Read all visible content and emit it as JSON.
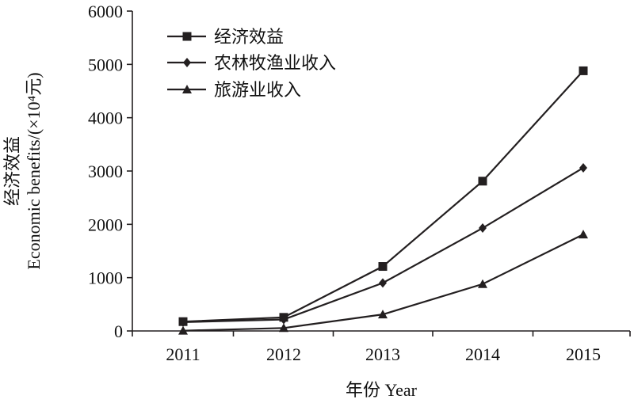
{
  "chart_data": {
    "type": "line",
    "x": [
      "2011",
      "2012",
      "2013",
      "2014",
      "2015"
    ],
    "xlabel": "年份 Year",
    "ylabel_line1": "经济效益",
    "ylabel_line2": "Economic benefits/(×10⁴元)",
    "ylim": [
      0,
      6000
    ],
    "yticks": [
      0,
      1000,
      2000,
      3000,
      4000,
      5000,
      6000
    ],
    "grid": false,
    "legend_position": "top-left",
    "series": [
      {
        "name": "经济效益",
        "marker": "square",
        "values": [
          175,
          255,
          1210,
          2810,
          4880
        ]
      },
      {
        "name": "农林牧渔业收入",
        "marker": "diamond",
        "values": [
          165,
          215,
          900,
          1930,
          3060
        ]
      },
      {
        "name": "旅游业收入",
        "marker": "triangle",
        "values": [
          5,
          55,
          310,
          880,
          1810
        ]
      }
    ],
    "colors": {
      "line": "#231f20",
      "axis": "#231f20"
    }
  }
}
